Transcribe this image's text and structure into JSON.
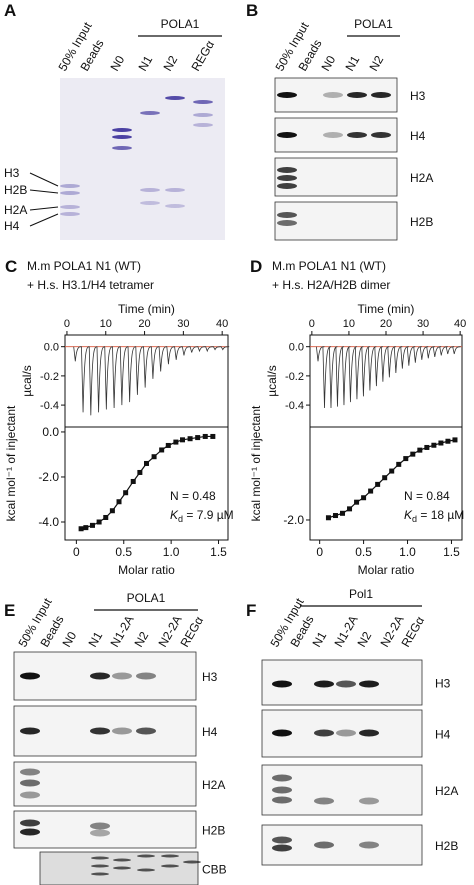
{
  "panel_a": {
    "label": "A",
    "lanes": [
      "50% Input",
      "Beads",
      "N0",
      "N1",
      "N2",
      "REGα"
    ],
    "group": "POLA1",
    "markers": [
      "H3",
      "H2B",
      "H2A",
      "H4"
    ]
  },
  "panel_b": {
    "label": "B",
    "lanes": [
      "50% Input",
      "Beads",
      "N0",
      "N1",
      "N2"
    ],
    "group": "POLA1",
    "blots": [
      "H3",
      "H4",
      "H2A",
      "H2B"
    ]
  },
  "panel_c": {
    "label": "C",
    "title": [
      "M.m POLA1 N1 (WT)",
      "+ H.s. H3.1/H4 tetramer"
    ],
    "raw": {
      "type": "itc-raw",
      "x_label": "Time (min)",
      "y_label": "µcal/s",
      "xlim": [
        -0.5,
        41.5
      ],
      "xticks": [
        0,
        10,
        20,
        30,
        40
      ],
      "ylim": [
        -0.55,
        0.08
      ],
      "yticks": [
        {
          "value": 0,
          "label": "0.0"
        },
        -0.2,
        -0.4
      ],
      "x": [
        2,
        4,
        6,
        8,
        10,
        12,
        14,
        16,
        18,
        20,
        22,
        24,
        26,
        28,
        30,
        32,
        34,
        36,
        38,
        40
      ],
      "values": [
        -0.1,
        -0.45,
        -0.47,
        -0.45,
        -0.43,
        -0.42,
        -0.4,
        -0.38,
        -0.33,
        -0.28,
        -0.22,
        -0.17,
        -0.12,
        -0.09,
        -0.06,
        -0.04,
        -0.03,
        -0.03,
        -0.02,
        -0.02
      ]
    },
    "binding": {
      "type": "itc-binding",
      "x_label": "Molar ratio",
      "y_label": "kcal mol⁻¹ of injectant",
      "xlim": [
        -0.12,
        1.6
      ],
      "xticks": [
        0,
        0.5,
        {
          "value": 1,
          "label": "1.0"
        },
        1.5
      ],
      "ylim": [
        -4.8,
        0.22
      ],
      "yticks": [
        {
          "value": 0,
          "label": "0.0"
        },
        {
          "value": -2,
          "label": "-2.0"
        },
        {
          "value": -4,
          "label": "-4.0"
        }
      ],
      "x": [
        0.05,
        0.1,
        0.17,
        0.24,
        0.31,
        0.38,
        0.45,
        0.52,
        0.6,
        0.67,
        0.74,
        0.82,
        0.9,
        0.97,
        1.05,
        1.12,
        1.2,
        1.28,
        1.36,
        1.44
      ],
      "values": [
        -4.3,
        -4.25,
        -4.15,
        -4.0,
        -3.8,
        -3.5,
        -3.1,
        -2.7,
        -2.2,
        -1.8,
        -1.4,
        -1.1,
        -0.8,
        -0.6,
        -0.45,
        -0.35,
        -0.3,
        -0.25,
        -0.2,
        -0.2
      ],
      "n_text": "N = 0.48",
      "kd_symbol": "K",
      "kd_sub": "d",
      "kd_text": " = 7.9 µM"
    }
  },
  "panel_d": {
    "label": "D",
    "title": [
      "M.m POLA1 N1 (WT)",
      "+ H.s. H2A/H2B dimer"
    ],
    "raw": {
      "type": "itc-raw",
      "x_label": "Time (min)",
      "y_label": "µcal/s",
      "xlim": [
        -0.5,
        40.5
      ],
      "xticks": [
        0,
        10,
        20,
        30,
        40
      ],
      "ylim": [
        -0.55,
        0.08
      ],
      "yticks": [
        {
          "value": 0,
          "label": "0.0"
        },
        -0.2,
        -0.4
      ],
      "x": [
        1.5,
        3.25,
        5,
        6.75,
        8.5,
        10.25,
        12,
        13.75,
        15.5,
        17.25,
        19,
        20.75,
        22.5,
        24.25,
        26,
        27.75,
        29.5,
        31.25,
        33,
        34.75,
        36.5,
        38.25
      ],
      "values": [
        -0.1,
        -0.42,
        -0.42,
        -0.41,
        -0.4,
        -0.38,
        -0.36,
        -0.34,
        -0.3,
        -0.27,
        -0.24,
        -0.21,
        -0.18,
        -0.15,
        -0.13,
        -0.11,
        -0.09,
        -0.08,
        -0.07,
        -0.06,
        -0.05,
        -0.05
      ]
    },
    "binding": {
      "type": "itc-binding",
      "x_label": "Molar ratio",
      "y_label": "kcal mol⁻¹ of injectant",
      "xlim": [
        -0.11,
        1.62
      ],
      "xticks": [
        0,
        0.5,
        {
          "value": 1,
          "label": "1.0"
        },
        1.5
      ],
      "ylim": [
        -2.45,
        0.09
      ],
      "yticks": [
        {
          "value": -2,
          "label": "-2.0"
        }
      ],
      "x": [
        0.1,
        0.18,
        0.26,
        0.34,
        0.42,
        0.5,
        0.58,
        0.66,
        0.74,
        0.82,
        0.9,
        0.98,
        1.06,
        1.14,
        1.22,
        1.3,
        1.38,
        1.46,
        1.54
      ],
      "values": [
        -1.95,
        -1.9,
        -1.85,
        -1.75,
        -1.6,
        -1.5,
        -1.35,
        -1.2,
        -1.05,
        -0.9,
        -0.75,
        -0.62,
        -0.52,
        -0.43,
        -0.37,
        -0.32,
        -0.27,
        -0.23,
        -0.2
      ],
      "n_text": "N = 0.84",
      "kd_symbol": "K",
      "kd_sub": "d",
      "kd_text": " = 18 µM"
    }
  },
  "panel_e": {
    "label": "E",
    "lanes": [
      "50% Input",
      "Beads",
      "N0",
      "N1",
      "N1-2A",
      "N2",
      "N2-2A",
      "REGα"
    ],
    "group": "POLA1",
    "blots": [
      "H3",
      "H4",
      "H2A",
      "H2B",
      "CBB"
    ]
  },
  "panel_f": {
    "label": "F",
    "lanes": [
      "50% Input",
      "Beads",
      "N1",
      "N1-2A",
      "N2",
      "N2-2A",
      "REGα"
    ],
    "group": "Pol1",
    "blots": [
      "H3",
      "H4",
      "H2A",
      "H2B"
    ]
  }
}
